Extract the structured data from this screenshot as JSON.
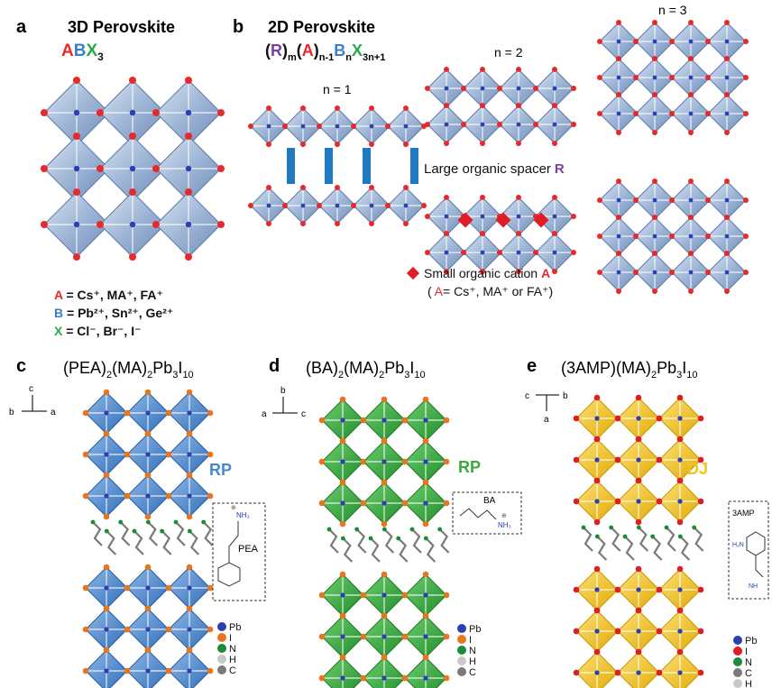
{
  "panel_a": {
    "letter": "a",
    "title": "3D Perovskite",
    "formula": {
      "a": "A",
      "b": "B",
      "x": "X",
      "sub": "3"
    },
    "legend": [
      {
        "sym": "A",
        "text": " = Cs⁺, MA⁺, FA⁺"
      },
      {
        "sym": "B",
        "text": " = Pb²⁺, Sn²⁺, Ge²⁺"
      },
      {
        "sym": "X",
        "text": " = Cl⁻, Br⁻, I⁻"
      }
    ]
  },
  "panel_b": {
    "letter": "b",
    "title": "2D Perovskite",
    "formula": {
      "lp1": "(",
      "r": "R",
      "rp1": ")",
      "sub_m": "m",
      "lp2": "(",
      "a": "A",
      "rp2": ")",
      "sub_n1": "n-1",
      "b": "B",
      "sub_n": "n",
      "x": "X",
      "sub_3n1": "3n+1"
    },
    "n1": "n = 1",
    "n2": "n = 2",
    "n3": "n = 3",
    "spacer_label": "Large organic spacer",
    "spacer_symbol": "R",
    "cation_label": "Small organic cation",
    "cation_symbol": "A",
    "cation_paren_pre": "(",
    "cation_paren_a": "A",
    "cation_paren_post": "= Cs⁺, MA⁺ or FA⁺)"
  },
  "panel_c": {
    "letter": "c",
    "title": {
      "t1": "(PEA)",
      "s1": "2",
      "t2": "(MA)",
      "s2": "2",
      "t3": "Pb",
      "s3": "3",
      "t4": "I",
      "s4": "10"
    },
    "axes": {
      "up": "c",
      "left": "b",
      "right": "a"
    },
    "type_label": "RP",
    "molecule_name": "PEA",
    "molecule_group": "NH₃",
    "molecule_charge": "⊕"
  },
  "panel_d": {
    "letter": "d",
    "title": {
      "t1": "(BA)",
      "s1": "2",
      "t2": "(MA)",
      "s2": "2",
      "t3": "Pb",
      "s3": "3",
      "t4": "I",
      "s4": "10"
    },
    "axes": {
      "up": "b",
      "left": "a",
      "right": "c"
    },
    "type_label": "RP",
    "molecule_name": "BA",
    "molecule_group": "NH₃",
    "molecule_charge": "⊕"
  },
  "panel_e": {
    "letter": "e",
    "title": {
      "t1": "(3AMP)(MA)",
      "s1": "2",
      "t2": "Pb",
      "s2": "3",
      "t3": "I",
      "s3": "10"
    },
    "axes": {
      "left": "c",
      "right": "b",
      "down": "a"
    },
    "type_label": "DJ",
    "molecule_name": "3AMP",
    "molecule_group_1": "H₂N",
    "molecule_group_2": "NH"
  },
  "atom_legend_cd": [
    "Pb",
    "I",
    "N",
    "H",
    "C"
  ],
  "atom_legend_e": [
    "Pb",
    "I",
    "N",
    "C",
    "H"
  ],
  "colors": {
    "A": "#e8282b",
    "B": "#3a7fc9",
    "X": "#2aa84a",
    "R": "#7b3fa0",
    "octahedron_3d": "#9fb6d6",
    "octahedron_c": "#4a88cf",
    "octahedron_d": "#3aaa3a",
    "octahedron_e": "#f2c418",
    "spacer_bar": "#1f7ac2",
    "cation_diamond": "#e01c24",
    "atom_Pb": "#2d3fae",
    "atom_I_c": "#e8761e",
    "atom_I_e": "#e01c24",
    "atom_N": "#1b8a3a",
    "atom_H": "#c8c8c8",
    "atom_C": "#7a7a7a",
    "type_RP_c": "#4a88cf",
    "type_RP_d": "#3aaa3a",
    "type_DJ": "#f2c418"
  }
}
